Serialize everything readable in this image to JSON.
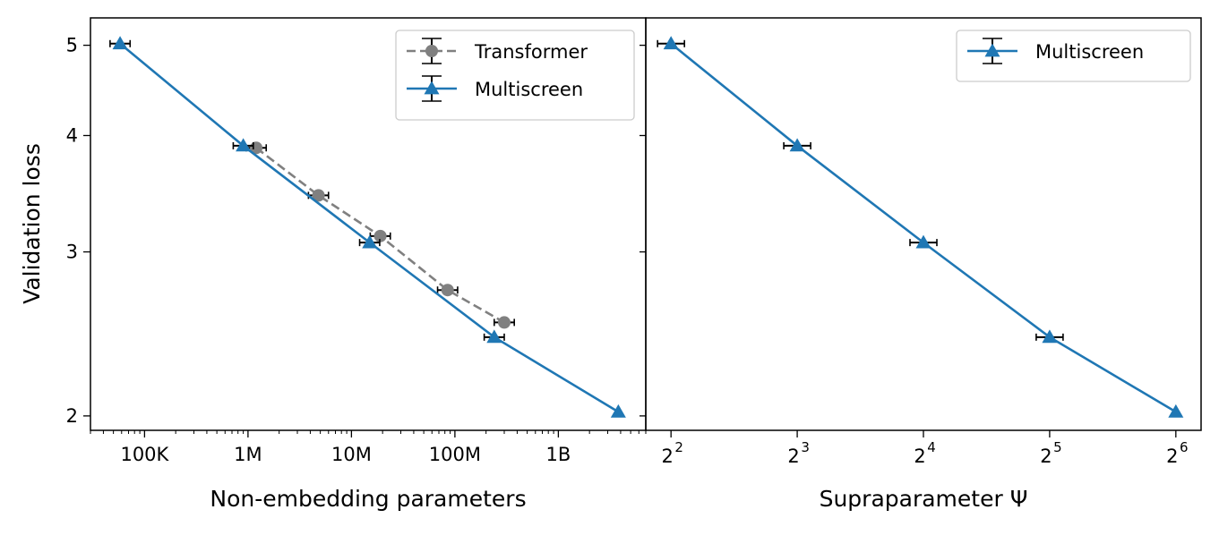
{
  "chart_data": [
    {
      "type": "line",
      "panel": "left",
      "xscale": "log",
      "yscale": "log",
      "xlabel": "Non-embedding parameters",
      "ylabel": "Validation loss",
      "xlim": [
        30000,
        7000000000
      ],
      "ylim": [
        1.93,
        5.35
      ],
      "xticks": [
        {
          "value": 100000,
          "label": "100K"
        },
        {
          "value": 1000000,
          "label": "1M"
        },
        {
          "value": 10000000,
          "label": "10M"
        },
        {
          "value": 100000000,
          "label": "100M"
        },
        {
          "value": 1000000000,
          "label": "1B"
        }
      ],
      "yticks": [
        {
          "value": 2,
          "label": "2"
        },
        {
          "value": 3,
          "label": "3"
        },
        {
          "value": 4,
          "label": "4"
        },
        {
          "value": 5,
          "label": "5"
        }
      ],
      "legend_position": "top-right",
      "series": [
        {
          "name": "Transformer",
          "color": "#808080",
          "linestyle": "dashed",
          "marker": "circle",
          "x": [
            1200000,
            4800000,
            19000000,
            85000000,
            300000000
          ],
          "y": [
            3.88,
            3.45,
            3.12,
            2.73,
            2.52
          ],
          "xerr_factor": 1.25
        },
        {
          "name": "Multiscreen",
          "color": "#1f77b4",
          "linestyle": "solid",
          "marker": "triangle",
          "x": [
            58000,
            900000,
            15000000,
            240000000,
            3800000000
          ],
          "y": [
            5.02,
            3.9,
            3.07,
            2.43,
            2.02
          ],
          "xerr_factor": 1.25
        }
      ]
    },
    {
      "type": "line",
      "panel": "right",
      "xscale": "log2",
      "yscale": "log",
      "xlabel": "Supraparameter Ψ",
      "xlim_exp": [
        1.8,
        6.2
      ],
      "ylim": [
        1.93,
        5.35
      ],
      "xticks": [
        {
          "exp": 2,
          "base": "2",
          "sup": "2"
        },
        {
          "exp": 3,
          "base": "2",
          "sup": "3"
        },
        {
          "exp": 4,
          "base": "2",
          "sup": "4"
        },
        {
          "exp": 5,
          "base": "2",
          "sup": "5"
        },
        {
          "exp": 6,
          "base": "2",
          "sup": "6"
        }
      ],
      "legend_position": "top-right",
      "series": [
        {
          "name": "Multiscreen",
          "color": "#1f77b4",
          "linestyle": "solid",
          "marker": "triangle",
          "x_exp": [
            2,
            3,
            4,
            5,
            6
          ],
          "y": [
            5.02,
            3.9,
            3.07,
            2.43,
            2.02
          ]
        }
      ]
    }
  ]
}
